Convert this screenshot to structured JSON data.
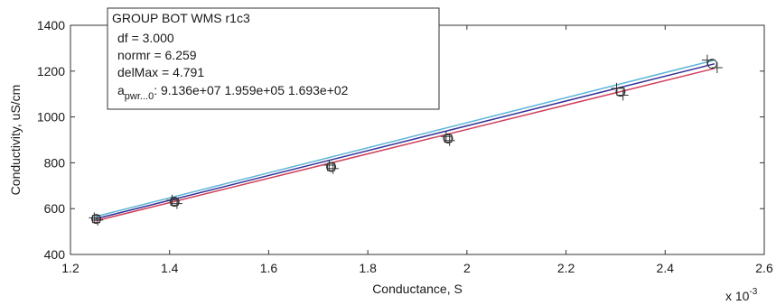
{
  "chart_data": {
    "type": "line",
    "xlabel": "Conductance, S",
    "ylabel": "Conductivity, uS/cm",
    "x_multiplier_label": "x 10",
    "x_multiplier_exp": "-3",
    "xlim": [
      0.0012,
      0.0026
    ],
    "ylim": [
      400,
      1400
    ],
    "xticks": [
      0.0012,
      0.0014,
      0.0016,
      0.0018,
      0.002,
      0.0022,
      0.0024,
      0.0026
    ],
    "xtick_labels": [
      "1.2",
      "1.4",
      "1.6",
      "1.8",
      "2",
      "2.2",
      "2.4",
      "2.6"
    ],
    "yticks": [
      400,
      600,
      800,
      1000,
      1200,
      1400
    ],
    "ytick_labels": [
      "400",
      "600",
      "800",
      "1000",
      "1200",
      "1400"
    ],
    "grid": false,
    "annotation": {
      "title": "GROUP BOT WMS r1c3",
      "lines": [
        "df = 3.000",
        "normr = 6.259",
        "delMax = 4.791"
      ],
      "coef_prefix": "a",
      "coef_subscript": "pwr...0",
      "coef_values": ": 9.136e+07   1.959e+05   1.693e+02"
    },
    "series": [
      {
        "color": "#5ab4d6",
        "style": "line",
        "x": [
          0.00125,
          0.0025
        ],
        "y": [
          565,
          1248
        ]
      },
      {
        "color": "#333399",
        "style": "line",
        "x": [
          0.00125,
          0.0025
        ],
        "y": [
          555,
          1232
        ]
      },
      {
        "color": "#d0405a",
        "style": "line",
        "x": [
          0.00125,
          0.0025
        ],
        "y": [
          546,
          1212
        ]
      },
      {
        "color": "#333333",
        "style": "plus",
        "x": [
          0.001255,
          0.001415,
          0.00173,
          0.001965,
          0.002315,
          0.002505
        ],
        "y": [
          550,
          622,
          775,
          897,
          1095,
          1215
        ]
      },
      {
        "color": "#333333",
        "style": "plus",
        "x": [
          0.001248,
          0.001405,
          0.001722,
          0.001958,
          0.002302,
          0.002485
        ],
        "y": [
          560,
          637,
          790,
          915,
          1125,
          1248
        ]
      },
      {
        "color": "#333333",
        "style": "circle",
        "x": [
          0.001252,
          0.00141,
          0.001726,
          0.001962,
          0.00231,
          0.002495
        ],
        "y": [
          555,
          630,
          782,
          906,
          1110,
          1232
        ]
      },
      {
        "color": "#333333",
        "style": "square",
        "x": [
          0.001252,
          0.00141,
          0.001726,
          0.001962,
          0.00231
        ],
        "y": [
          555,
          630,
          782,
          906,
          1110
        ]
      }
    ]
  }
}
